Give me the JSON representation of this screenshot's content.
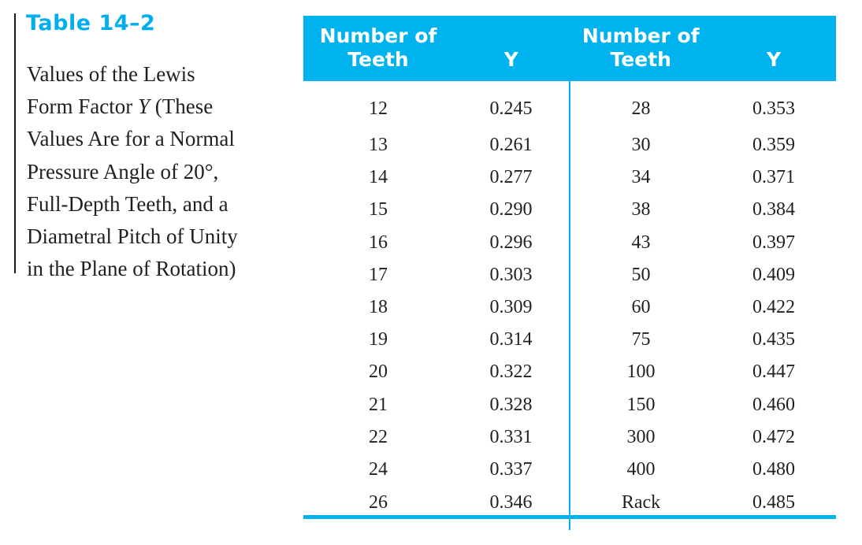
{
  "caption": {
    "title": "Table 14–2",
    "lines": [
      "Values of the Lewis",
      "Form Factor",
      "Y",
      "(These",
      "Values Are for a Normal",
      "Pressure Angle of 20°,",
      "Full-Depth Teeth, and a",
      "Diametral Pitch of Unity",
      "in the Plane of Rotation)"
    ]
  },
  "table": {
    "headers": {
      "teeth_left_1": "Number of",
      "teeth_left_2": "Teeth",
      "y_left": "Y",
      "teeth_right_1": "Number of",
      "teeth_right_2": "Teeth",
      "y_right": "Y"
    },
    "rows": [
      [
        "12",
        "0.245",
        "28",
        "0.353"
      ],
      [
        "13",
        "0.261",
        "30",
        "0.359"
      ],
      [
        "14",
        "0.277",
        "34",
        "0.371"
      ],
      [
        "15",
        "0.290",
        "38",
        "0.384"
      ],
      [
        "16",
        "0.296",
        "43",
        "0.397"
      ],
      [
        "17",
        "0.303",
        "50",
        "0.409"
      ],
      [
        "18",
        "0.309",
        "60",
        "0.422"
      ],
      [
        "19",
        "0.314",
        "75",
        "0.435"
      ],
      [
        "20",
        "0.322",
        "100",
        "0.447"
      ],
      [
        "21",
        "0.328",
        "150",
        "0.460"
      ],
      [
        "22",
        "0.331",
        "300",
        "0.472"
      ],
      [
        "24",
        "0.337",
        "400",
        "0.480"
      ],
      [
        "26",
        "0.346",
        "Rack",
        "0.485"
      ]
    ]
  },
  "colors": {
    "accent": "#00b2ee",
    "text": "#231f20"
  }
}
